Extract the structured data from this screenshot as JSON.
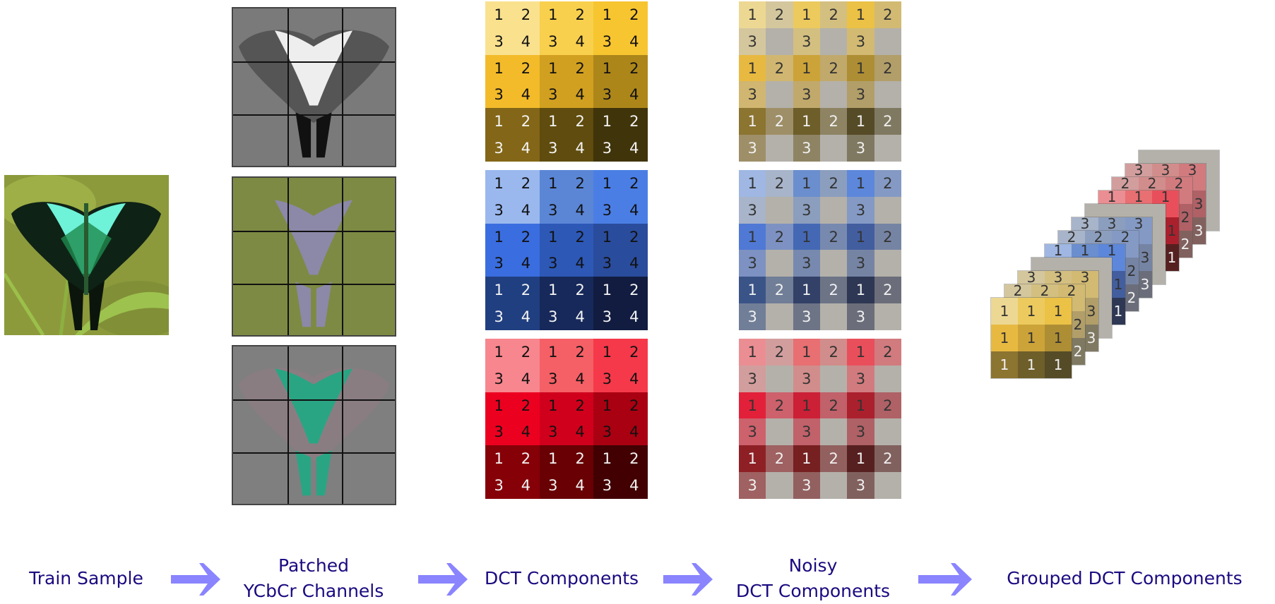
{
  "labels": {
    "train_sample": "Train Sample",
    "patched_line1": "Patched",
    "patched_line2": "YCbCr Channels",
    "dct": "DCT Components",
    "noisy_line1": "Noisy",
    "noisy_line2": "DCT Components",
    "grouped": "Grouped DCT Components"
  },
  "component_numbers": [
    "1",
    "2",
    "3",
    "4"
  ],
  "colors": {
    "label_text": "#1a0a80",
    "arrow": "#8a84ff",
    "noise_gray": "#b4b1aa"
  },
  "channels": [
    {
      "name": "Y",
      "blocks": [
        [
          "#fae18e",
          "#f8d04d",
          "#f7c530"
        ],
        [
          "#f3bb2a",
          "#d1a020",
          "#ad861a"
        ],
        [
          "#836617",
          "#5f4c0e",
          "#40340a"
        ]
      ]
    },
    {
      "name": "Cb",
      "blocks": [
        [
          "#9ab8ee",
          "#5b86d6",
          "#4a7ee4"
        ],
        [
          "#3a6ddf",
          "#2d58b6",
          "#2a4c9c"
        ],
        [
          "#203f80",
          "#17295a",
          "#111c40"
        ]
      ]
    },
    {
      "name": "Cr",
      "blocks": [
        [
          "#f7868e",
          "#f46066",
          "#f5394a"
        ],
        [
          "#ec0020",
          "#d0001c",
          "#a90012"
        ],
        [
          "#860008",
          "#680004",
          "#420002"
        ]
      ]
    }
  ]
}
